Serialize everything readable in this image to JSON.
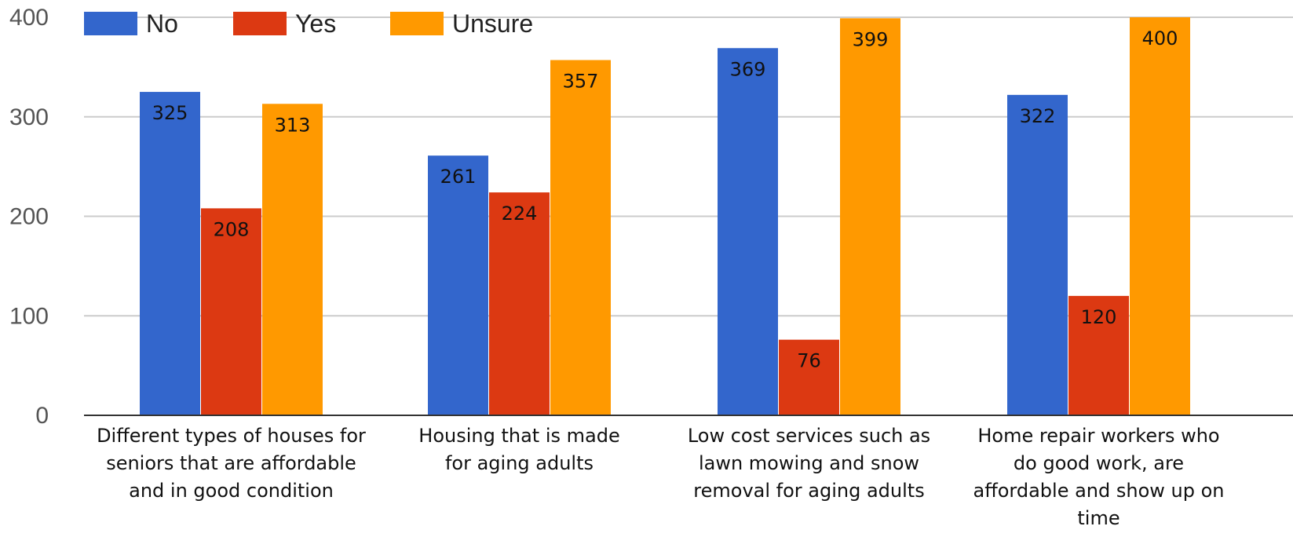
{
  "chart_data": {
    "type": "bar",
    "title": "",
    "xlabel": "",
    "ylabel": "",
    "ylim": [
      0,
      400
    ],
    "yticks": [
      0,
      100,
      200,
      300,
      400
    ],
    "grid": true,
    "legend_position": "top-left",
    "categories": [
      [
        "Different types of houses for",
        "seniors that are affordable",
        "and in good condition"
      ],
      [
        "Housing that is made",
        "for aging adults"
      ],
      [
        "Low cost services such as",
        "lawn mowing and snow",
        "removal for aging adults"
      ],
      [
        "Home repair workers who",
        "do good work, are",
        "affordable and show up on",
        "time"
      ]
    ],
    "series": [
      {
        "name": "No",
        "color": "#3366cc",
        "values": [
          325,
          261,
          369,
          322
        ]
      },
      {
        "name": "Yes",
        "color": "#dc3912",
        "values": [
          208,
          224,
          76,
          120
        ]
      },
      {
        "name": "Unsure",
        "color": "#ff9900",
        "values": [
          313,
          357,
          399,
          400
        ]
      }
    ]
  }
}
